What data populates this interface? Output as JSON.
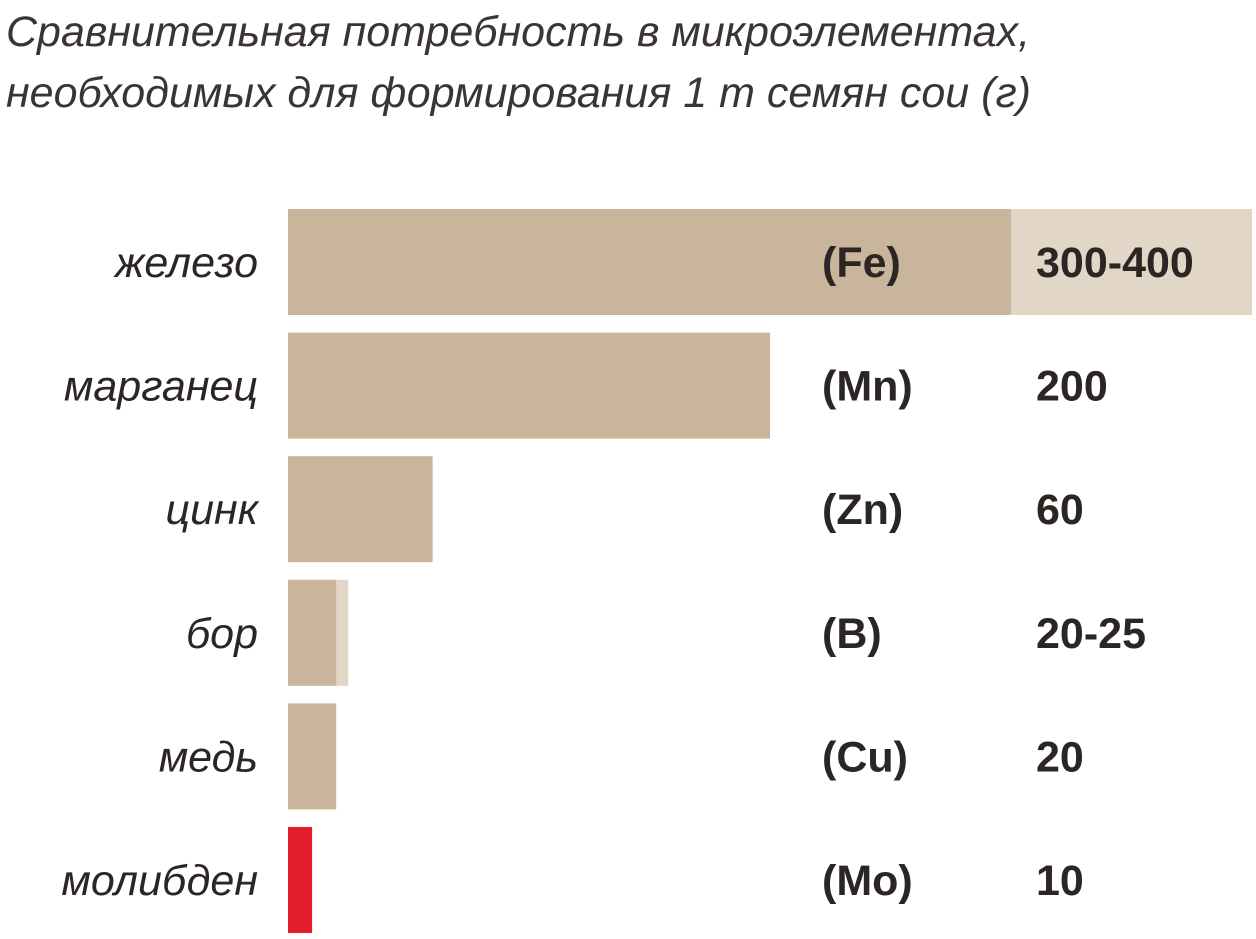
{
  "chart_data": {
    "type": "bar",
    "orientation": "horizontal",
    "title_lines": [
      "Сравнительная потребность в микроэлементах,",
      "необходимых для формирования 1 т семян сои (г)"
    ],
    "categories": [
      "железо",
      "марганец",
      "цинк",
      "бор",
      "медь",
      "молибден"
    ],
    "symbols": [
      "(Fe)",
      "(Mn)",
      "(Zn)",
      "(B)",
      "(Cu)",
      "(Mo)"
    ],
    "value_labels": [
      "300-400",
      "200",
      "60",
      "20-25",
      "20",
      "10"
    ],
    "values_min": [
      300,
      200,
      60,
      20,
      20,
      10
    ],
    "values_max": [
      400,
      200,
      60,
      25,
      20,
      10
    ],
    "xlim": [
      0,
      400
    ],
    "grid": false,
    "legend": "none",
    "colors": {
      "bar": "#c8b59b",
      "range": "#e2d6c7",
      "highlight": "#e41f2b",
      "text": "#2b2523"
    },
    "highlight_category": "молибден"
  }
}
